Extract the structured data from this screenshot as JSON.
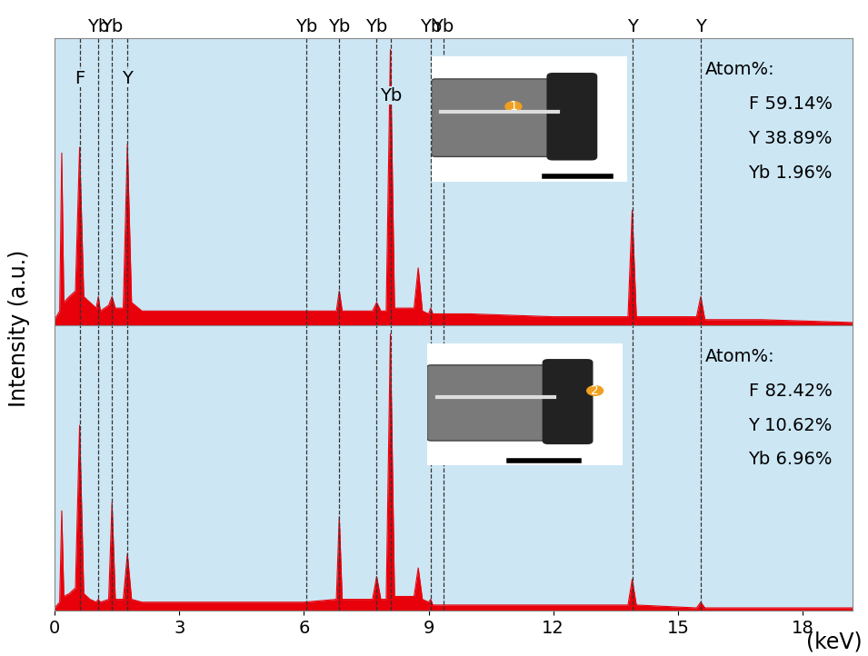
{
  "chart_data": [
    {
      "type": "area",
      "color": "#e8000b",
      "ylabel": "Intensity (a.u.)",
      "x": [
        0,
        0.12,
        0.17,
        0.22,
        0.35,
        0.5,
        0.6,
        0.7,
        0.85,
        1.0,
        1.05,
        1.1,
        1.3,
        1.38,
        1.46,
        1.65,
        1.75,
        1.85,
        2.1,
        3,
        4,
        5,
        6,
        6.78,
        6.85,
        6.92,
        7.65,
        7.75,
        7.85,
        7.98,
        8.08,
        8.18,
        8.65,
        8.75,
        8.85,
        9.0,
        9.05,
        9.1,
        10,
        12,
        13.8,
        13.9,
        14.0,
        15.45,
        15.55,
        15.65,
        17,
        19.2
      ],
      "values": [
        0.02,
        0.05,
        0.6,
        0.08,
        0.1,
        0.12,
        0.62,
        0.1,
        0.08,
        0.06,
        0.1,
        0.05,
        0.07,
        0.1,
        0.06,
        0.06,
        0.63,
        0.08,
        0.05,
        0.05,
        0.05,
        0.05,
        0.05,
        0.05,
        0.12,
        0.05,
        0.05,
        0.08,
        0.05,
        0.05,
        0.96,
        0.06,
        0.06,
        0.2,
        0.05,
        0.04,
        0.06,
        0.04,
        0.04,
        0.03,
        0.03,
        0.4,
        0.03,
        0.03,
        0.1,
        0.02,
        0.02,
        0.01
      ],
      "xlim": [
        0,
        19.2
      ],
      "ylim": [
        0,
        1
      ],
      "yticks": [],
      "tick_labels": false,
      "lines": [
        0.6,
        1.05,
        1.38,
        1.75,
        6.05,
        6.85,
        7.75,
        8.1,
        9.05,
        9.35,
        13.9,
        15.55
      ],
      "top_labels": [
        {
          "x": 1.05,
          "label": "Yb"
        },
        {
          "x": 1.38,
          "label": "Yb"
        },
        {
          "x": 6.05,
          "label": "Yb"
        },
        {
          "x": 6.85,
          "label": "Yb"
        },
        {
          "x": 7.75,
          "label": "Yb"
        },
        {
          "x": 9.05,
          "label": "Yb"
        },
        {
          "x": 9.35,
          "label": "Yb"
        },
        {
          "x": 13.9,
          "label": "Y"
        },
        {
          "x": 15.55,
          "label": "Y"
        }
      ],
      "inner_labels": [
        {
          "x": 0.6,
          "label": "F"
        },
        {
          "x": 1.75,
          "label": "Y"
        },
        {
          "x": 8.1,
          "label": "Yb"
        }
      ],
      "inset_marker": "1",
      "atom_percent": {
        "title": "Atom%:",
        "lines": [
          "F 59.14%",
          "Y 38.89%",
          "Yb 1.96%"
        ]
      }
    },
    {
      "type": "area",
      "color": "#e8000b",
      "xlabel": "(keV)",
      "x": [
        0,
        0.12,
        0.17,
        0.22,
        0.35,
        0.5,
        0.6,
        0.7,
        0.85,
        1.0,
        1.05,
        1.1,
        1.3,
        1.38,
        1.46,
        1.65,
        1.75,
        1.85,
        2.1,
        3,
        4,
        5,
        6,
        6.78,
        6.85,
        6.92,
        7.65,
        7.75,
        7.85,
        7.98,
        8.08,
        8.18,
        8.65,
        8.75,
        8.85,
        9.0,
        9.05,
        9.1,
        10,
        12,
        13.8,
        13.9,
        14.0,
        15.45,
        15.55,
        15.65,
        17,
        19.2
      ],
      "values": [
        0.01,
        0.03,
        0.35,
        0.05,
        0.06,
        0.08,
        0.65,
        0.06,
        0.04,
        0.03,
        0.04,
        0.03,
        0.04,
        0.38,
        0.04,
        0.04,
        0.2,
        0.04,
        0.03,
        0.03,
        0.03,
        0.03,
        0.03,
        0.04,
        0.33,
        0.04,
        0.04,
        0.12,
        0.04,
        0.04,
        0.97,
        0.05,
        0.05,
        0.15,
        0.04,
        0.03,
        0.04,
        0.02,
        0.02,
        0.02,
        0.02,
        0.11,
        0.02,
        0.01,
        0.03,
        0.01,
        0.01,
        0.01
      ],
      "xlim": [
        0,
        19.2
      ],
      "ylim": [
        0,
        1
      ],
      "xticks": [
        0,
        3,
        6,
        9,
        12,
        15,
        18
      ],
      "yticks": [],
      "tick_labels": "x",
      "lines": [
        0.6,
        1.05,
        1.38,
        1.75,
        6.05,
        6.85,
        7.75,
        8.1,
        9.05,
        9.35,
        13.9,
        15.55
      ],
      "inset_marker": "2",
      "atom_percent": {
        "title": "Atom%:",
        "lines": [
          "F 82.42%",
          "Y 10.62%",
          "Yb 6.96%"
        ]
      }
    }
  ]
}
